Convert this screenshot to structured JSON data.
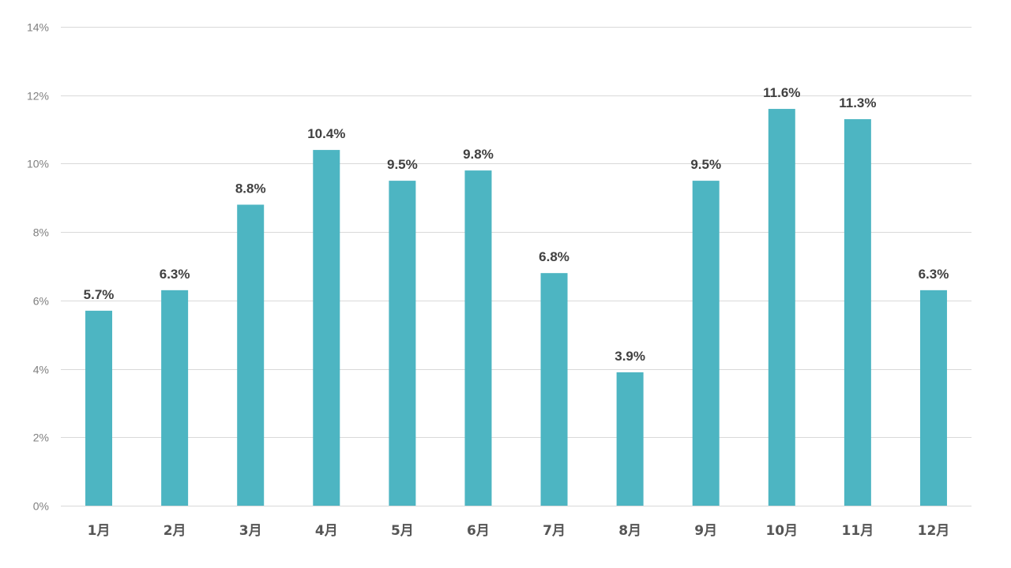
{
  "chart_data": {
    "type": "bar",
    "title": "",
    "xlabel": "",
    "ylabel": "",
    "categories": [
      "1月",
      "2月",
      "3月",
      "4月",
      "5月",
      "6月",
      "7月",
      "8月",
      "9月",
      "10月",
      "11月",
      "12月"
    ],
    "values": [
      5.7,
      6.3,
      8.8,
      10.4,
      9.5,
      9.8,
      6.8,
      3.9,
      9.5,
      11.6,
      11.3,
      6.3
    ],
    "data_labels": [
      "5.7%",
      "6.3%",
      "8.8%",
      "10.4%",
      "9.5%",
      "9.8%",
      "6.8%",
      "3.9%",
      "9.5%",
      "11.6%",
      "11.3%",
      "6.3%"
    ],
    "ylim": [
      0,
      14
    ],
    "y_ticks": [
      0,
      2,
      4,
      6,
      8,
      10,
      12,
      14
    ],
    "y_tick_labels": [
      "0%",
      "2%",
      "4%",
      "6%",
      "8%",
      "10%",
      "12%",
      "14%"
    ],
    "grid": true,
    "legend": "none",
    "bar_color": "#4db5c2"
  }
}
